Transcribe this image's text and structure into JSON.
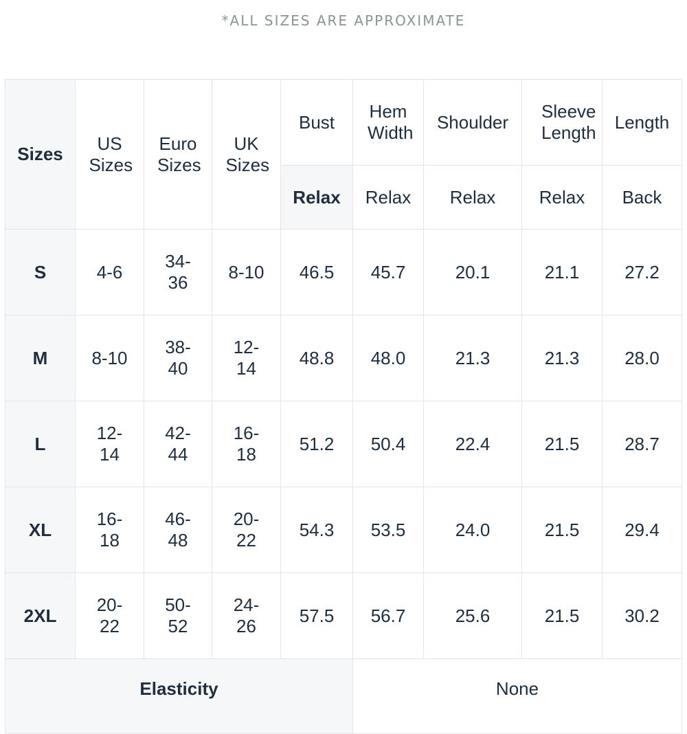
{
  "note": "*ALL SIZES ARE APPROXIMATE",
  "header": {
    "sizes": "Sizes",
    "us": "US Sizes",
    "euro": "Euro Sizes",
    "uk": "UK Sizes",
    "bust": "Bust",
    "hem": "Hem Width",
    "shoulder": "Shoulder",
    "sleeve": "Sleeve Length",
    "length": "Length"
  },
  "subheader": {
    "bust": "Relax",
    "hem": "Relax",
    "shoulder": "Relax",
    "sleeve": "Relax",
    "length": "Back"
  },
  "rows": [
    {
      "size": "S",
      "us": "4-6",
      "euro": "34-36",
      "uk": "8-10",
      "bust": "46.5",
      "hem": "45.7",
      "shoulder": "20.1",
      "sleeve": "21.1",
      "length": "27.2"
    },
    {
      "size": "M",
      "us": "8-10",
      "euro": "38-40",
      "uk": "12-14",
      "bust": "48.8",
      "hem": "48.0",
      "shoulder": "21.3",
      "sleeve": "21.3",
      "length": "28.0"
    },
    {
      "size": "L",
      "us": "12-14",
      "euro": "42-44",
      "uk": "16-18",
      "bust": "51.2",
      "hem": "50.4",
      "shoulder": "22.4",
      "sleeve": "21.5",
      "length": "28.7"
    },
    {
      "size": "XL",
      "us": "16-18",
      "euro": "46-48",
      "uk": "20-22",
      "bust": "54.3",
      "hem": "53.5",
      "shoulder": "24.0",
      "sleeve": "21.5",
      "length": "29.4"
    },
    {
      "size": "2XL",
      "us": "20-22",
      "euro": "50-52",
      "uk": "24-26",
      "bust": "57.5",
      "hem": "56.7",
      "shoulder": "25.6",
      "sleeve": "21.5",
      "length": "30.2"
    }
  ],
  "footer": {
    "label": "Elasticity",
    "value": "None"
  }
}
